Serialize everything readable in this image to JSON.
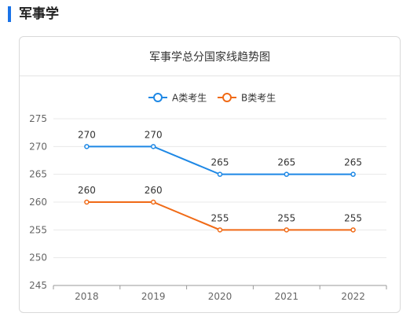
{
  "section": {
    "title": "军事学"
  },
  "colors": {
    "accent": "#1a73e8",
    "series_a": "#1e88e5",
    "series_b": "#f06a16"
  },
  "chart_data": {
    "type": "line",
    "title": "军事学总分国家线趋势图",
    "x": [
      "2018",
      "2019",
      "2020",
      "2021",
      "2022"
    ],
    "series": [
      {
        "name": "A类考生",
        "values": [
          270,
          270,
          265,
          265,
          265
        ],
        "color": "#1e88e5"
      },
      {
        "name": "B类考生",
        "values": [
          260,
          260,
          255,
          255,
          255
        ],
        "color": "#f06a16"
      }
    ],
    "ylim": [
      245,
      275
    ],
    "yticks": [
      245,
      250,
      255,
      260,
      265,
      270,
      275
    ],
    "grid": true,
    "legend_position": "top-center",
    "data_labels": true,
    "xlabel": "",
    "ylabel": ""
  }
}
